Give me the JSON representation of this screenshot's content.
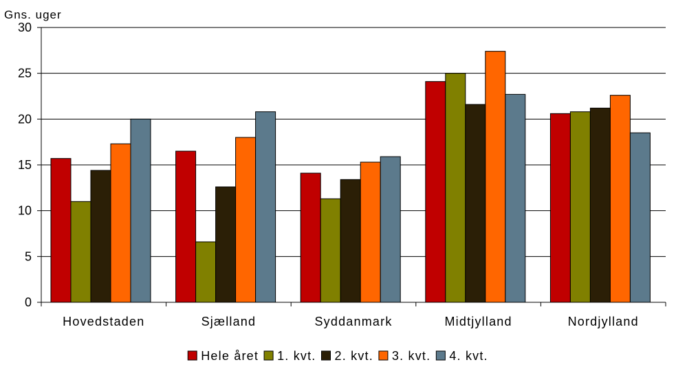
{
  "chart_data": {
    "type": "bar",
    "y_unit_label": "Gns. uger",
    "categories": [
      "Hovedstaden",
      "Sjælland",
      "Syddanmark",
      "Midtjylland",
      "Nordjylland"
    ],
    "series": [
      {
        "name": "Hele året",
        "color": "#c00000",
        "values": [
          15.7,
          16.5,
          14.1,
          24.1,
          20.6
        ]
      },
      {
        "name": "1. kvt.",
        "color": "#808000",
        "values": [
          11.0,
          6.6,
          11.3,
          25.0,
          20.8
        ]
      },
      {
        "name": "2. kvt.",
        "color": "#2b1f06",
        "values": [
          14.4,
          12.6,
          13.4,
          21.6,
          21.2
        ]
      },
      {
        "name": "3. kvt.",
        "color": "#ff6600",
        "values": [
          17.3,
          18.0,
          15.3,
          27.4,
          22.6
        ]
      },
      {
        "name": "4. kvt.",
        "color": "#5c7a8c",
        "values": [
          20.0,
          20.8,
          15.9,
          22.7,
          18.5
        ]
      }
    ],
    "ylim": [
      0,
      30
    ],
    "y_ticks": [
      "0",
      "5",
      "10",
      "15",
      "20",
      "25",
      "30"
    ],
    "grid": true,
    "legend_position": "bottom-center"
  }
}
